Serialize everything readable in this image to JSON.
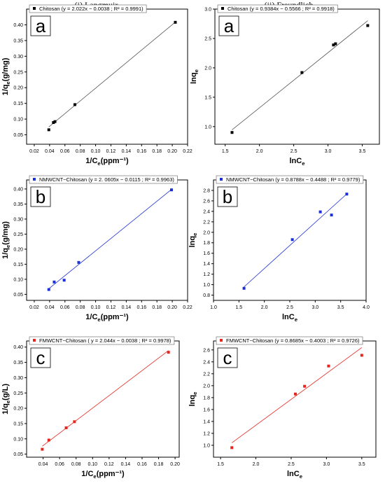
{
  "column_titles": [
    "(i) Langmuir",
    "(ii) Freundlich"
  ],
  "chart_data": [
    {
      "type": "scatter",
      "panel": "a",
      "column": "Langmuir",
      "legend": "Chitosan (y = 2.022x − 0.0038 ; R² = 0.9991)",
      "series": [
        {
          "name": "Chitosan",
          "color": "#000000",
          "marker": "square",
          "x": [
            0.039,
            0.045,
            0.047,
            0.073,
            0.204
          ],
          "y": [
            0.066,
            0.089,
            0.092,
            0.146,
            0.408
          ],
          "fit": {
            "slope": 2.022,
            "intercept": -0.0038
          }
        }
      ],
      "xlabel": "1/Ce(ppm⁻¹)",
      "ylabel": "1/qe(g/mg)",
      "xlim": [
        0.01,
        0.22
      ],
      "ylim": [
        0.02,
        0.45
      ],
      "xticks": [
        "0.02",
        "0.04",
        "0.06",
        "0.08",
        "0.10",
        "0.12",
        "0.14",
        "0.16",
        "0.18",
        "0.20",
        "0.22"
      ],
      "yticks": [
        "0.05",
        "0.10",
        "0.15",
        "0.20",
        "0.25",
        "0.30",
        "0.35",
        "0.40"
      ]
    },
    {
      "type": "scatter",
      "panel": "a",
      "column": "Freundlich",
      "legend": "Chitosan (y = 0.9384x − 0.5566 ; R² = 0.9918)",
      "series": [
        {
          "name": "Chitosan",
          "color": "#000000",
          "marker": "square",
          "x": [
            1.6,
            2.62,
            3.08,
            3.11,
            3.58
          ],
          "y": [
            0.9,
            1.92,
            2.39,
            2.41,
            2.72
          ],
          "fit": {
            "slope": 0.9384,
            "intercept": -0.5566
          }
        }
      ],
      "xlabel": "lnCe",
      "ylabel": "lnqe",
      "xlim": [
        1.35,
        3.75
      ],
      "ylim": [
        0.7,
        3.0
      ],
      "xticks": [
        "1.5",
        "2.0",
        "2.5",
        "3.0",
        "3.5"
      ],
      "yticks": [
        "1.0",
        "1.5",
        "2.0",
        "2.5",
        "3.0"
      ]
    },
    {
      "type": "scatter",
      "panel": "b",
      "column": "Langmuir",
      "legend": "NMWCNT−Chitosan (y = 2. 0605x − 0.0115 ; R² = 0.9963)",
      "series": [
        {
          "name": "NMWCNT−Chitosan",
          "color": "#1a2fd6",
          "marker": "square",
          "x": [
            0.039,
            0.046,
            0.059,
            0.078,
            0.199
          ],
          "y": [
            0.066,
            0.091,
            0.097,
            0.156,
            0.397
          ],
          "fit": {
            "slope": 2.0605,
            "intercept": -0.0115
          }
        }
      ],
      "xlabel": "1/Ce(ppm⁻¹)",
      "ylabel": "1/qe(g/mg)",
      "xlim": [
        0.01,
        0.22
      ],
      "ylim": [
        0.03,
        0.43
      ],
      "xticks": [
        "0.02",
        "0.04",
        "0.06",
        "0.08",
        "0.10",
        "0.12",
        "0.14",
        "0.16",
        "0.18",
        "0.20",
        "0.22"
      ],
      "yticks": [
        "0.05",
        "0.10",
        "0.15",
        "0.20",
        "0.25",
        "0.30",
        "0.35",
        "0.40"
      ]
    },
    {
      "type": "scatter",
      "panel": "b",
      "column": "Freundlich",
      "legend": "NMWCNT−Chitosan (y = 0.8788x − 0.4488 ; R² = 0.9779)",
      "series": [
        {
          "name": "NMWCNT−Chitosan",
          "color": "#1a2fd6",
          "marker": "square",
          "x": [
            1.6,
            2.55,
            3.1,
            3.32,
            3.62
          ],
          "y": [
            0.93,
            1.86,
            2.39,
            2.33,
            2.73
          ],
          "fit": {
            "slope": 0.8788,
            "intercept": -0.4488
          }
        }
      ],
      "xlabel": "lnCe",
      "ylabel": "lnqe",
      "xlim": [
        1.0,
        4.0
      ],
      "ylim": [
        0.7,
        3.0
      ],
      "xticks": [
        "1.0",
        "1.5",
        "2.0",
        "2.5",
        "3.0",
        "3.5",
        "4.0"
      ],
      "yticks": [
        "0.8",
        "1.0",
        "1.2",
        "1.4",
        "1.6",
        "1.8",
        "2.0",
        "2.2",
        "2.4",
        "2.6",
        "2.8"
      ]
    },
    {
      "type": "scatter",
      "panel": "c",
      "column": "Langmuir",
      "legend": "FMWCNT−Chitosan ( y = 2.044x − 0.0038 ; R² = 0.9978)",
      "series": [
        {
          "name": "FMWCNT−Chitosan",
          "color": "#e8241e",
          "marker": "square",
          "x": [
            0.039,
            0.047,
            0.068,
            0.078,
            0.192
          ],
          "y": [
            0.066,
            0.096,
            0.136,
            0.156,
            0.383
          ],
          "fit": {
            "slope": 2.044,
            "intercept": -0.0038
          }
        }
      ],
      "xlabel": "1/Ce(ppm⁻¹)",
      "ylabel": "1/qe(g/L)",
      "xlim": [
        0.02,
        0.205
      ],
      "ylim": [
        0.04,
        0.42
      ],
      "xticks": [
        "0.04",
        "0.06",
        "0.08",
        "0.10",
        "0.12",
        "0.14",
        "0.16",
        "0.18",
        "0.20"
      ],
      "yticks": [
        "0.05",
        "0.10",
        "0.15",
        "0.20",
        "0.25",
        "0.30",
        "0.35",
        "0.40"
      ]
    },
    {
      "type": "scatter",
      "panel": "c",
      "column": "Freundlich",
      "legend": "FMWCNT−Chitosan (y = 0.8685x − 0.4003 ; R² = 0.9726)",
      "series": [
        {
          "name": "FMWCNT−Chitosan",
          "color": "#e8241e",
          "marker": "square",
          "x": [
            1.66,
            2.56,
            2.69,
            3.03,
            3.5
          ],
          "y": [
            0.96,
            1.86,
            1.99,
            2.33,
            2.51
          ],
          "fit": {
            "slope": 0.8685,
            "intercept": -0.4003
          }
        }
      ],
      "xlabel": "lnCe",
      "ylabel": "lnqe",
      "xlim": [
        1.4,
        3.7
      ],
      "ylim": [
        0.8,
        2.75
      ],
      "xticks": [
        "1.5",
        "2.0",
        "2.5",
        "3.0",
        "3.5"
      ],
      "yticks": [
        "1.0",
        "1.2",
        "1.4",
        "1.6",
        "1.8",
        "2.0",
        "2.2",
        "2.4",
        "2.6"
      ]
    }
  ]
}
